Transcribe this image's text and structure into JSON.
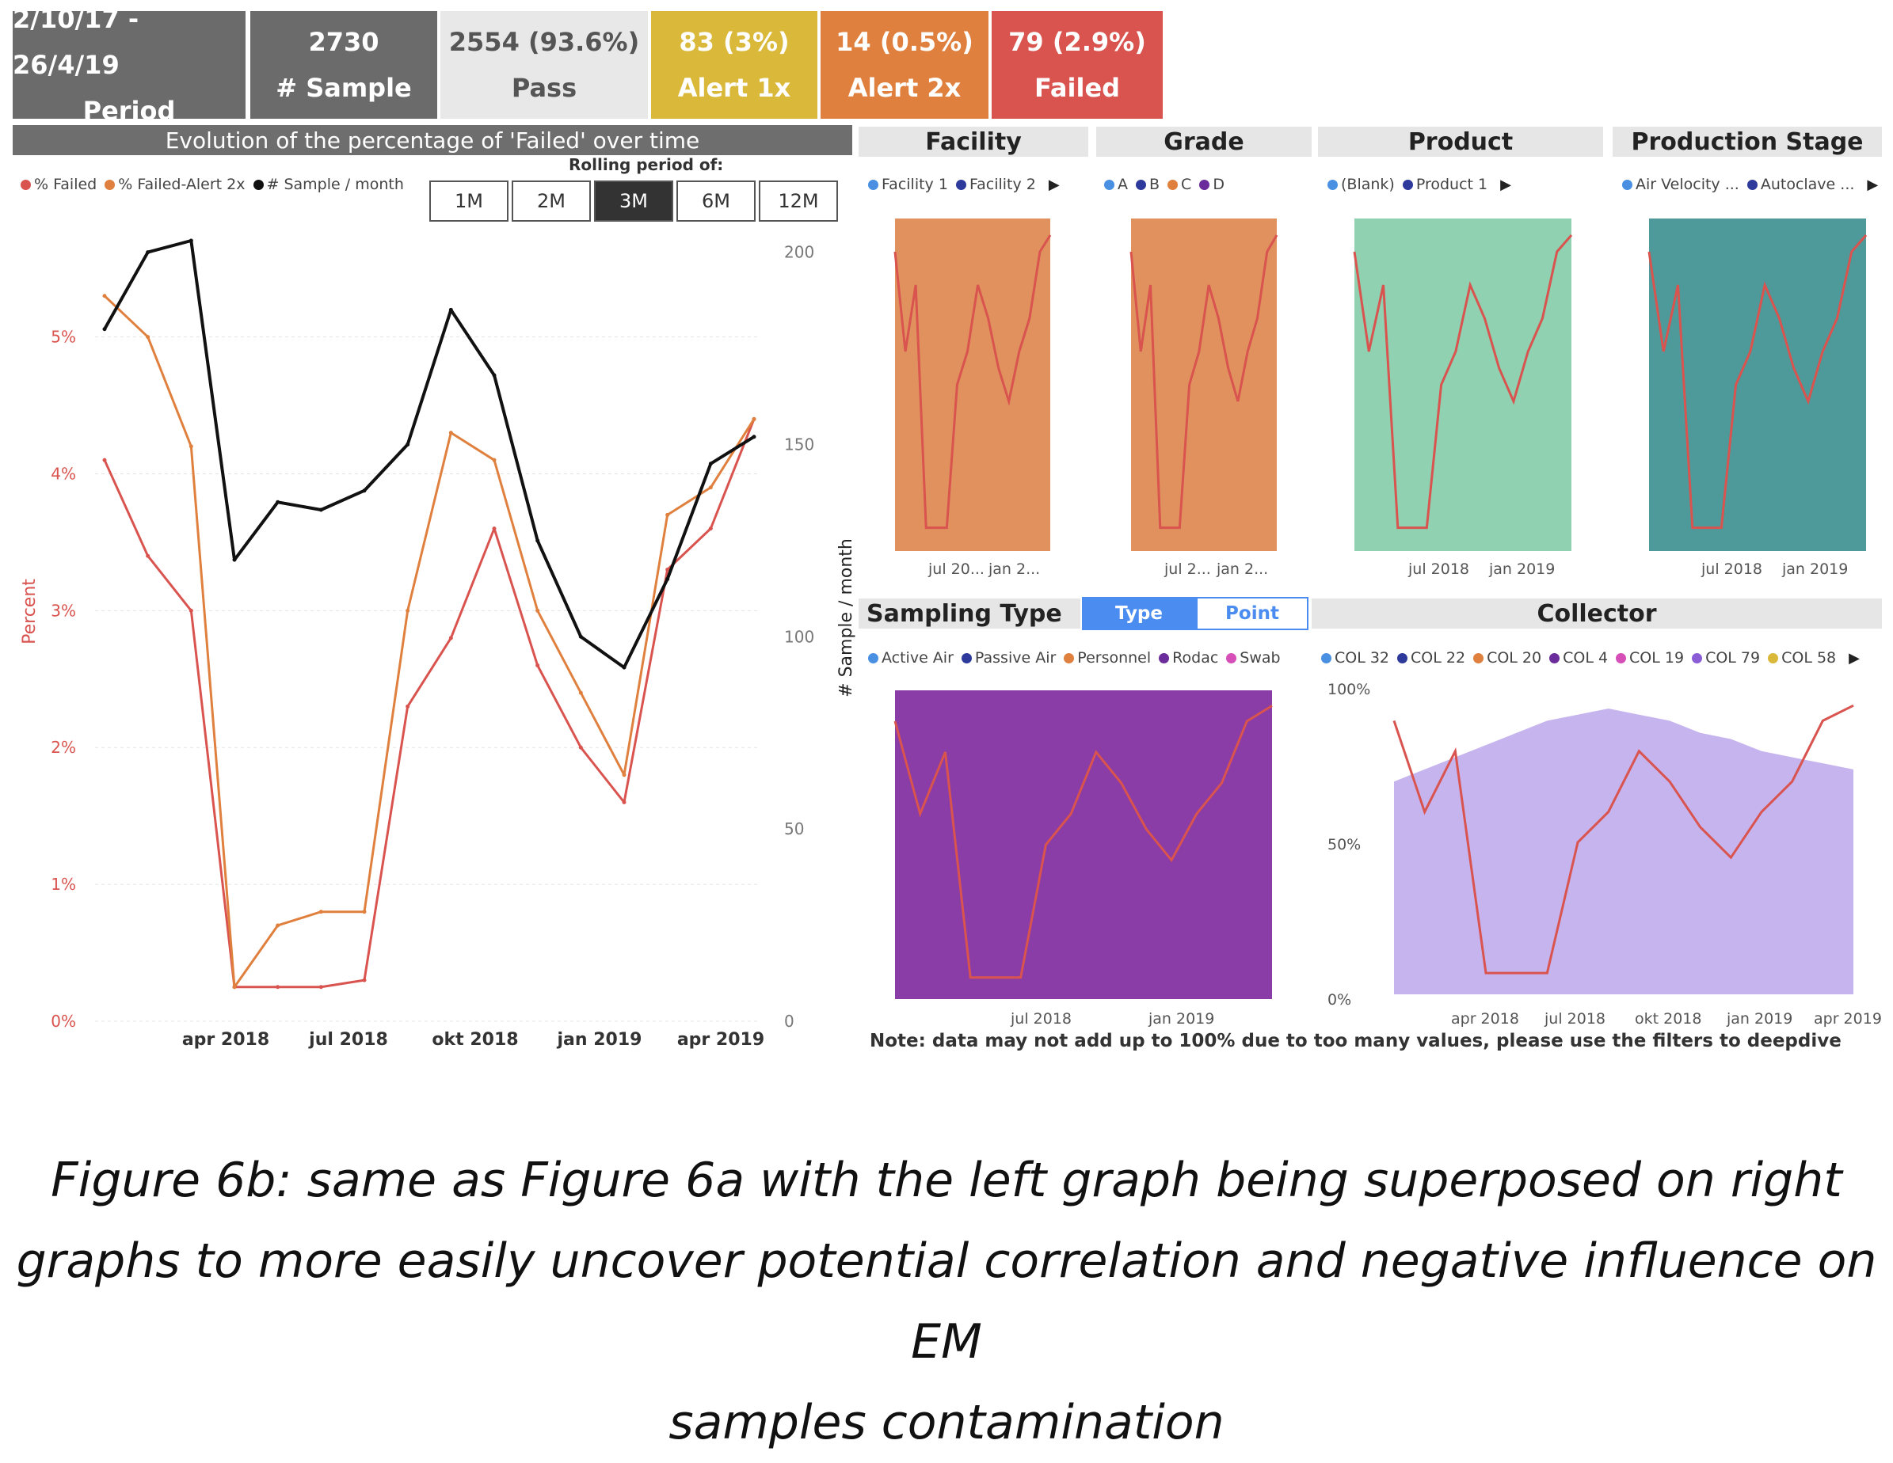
{
  "kpis": [
    {
      "value": "2/10/17 - 26/4/19",
      "label": "Period",
      "bg": "#6b6b6b",
      "fg": "#ffffff"
    },
    {
      "value": "2730",
      "label": "# Sample",
      "bg": "#6b6b6b",
      "fg": "#ffffff"
    },
    {
      "value": "2554 (93.6%)",
      "label": "Pass",
      "bg": "#e8e8e8",
      "fg": "#555555"
    },
    {
      "value": "83 (3%)",
      "label": "Alert 1x",
      "bg": "#d9b83a",
      "fg": "#ffffff"
    },
    {
      "value": "14 (0.5%)",
      "label": "Alert 2x",
      "bg": "#e0803e",
      "fg": "#ffffff"
    },
    {
      "value": "79 (2.9%)",
      "label": "Failed",
      "bg": "#d9534f",
      "fg": "#ffffff"
    }
  ],
  "main_chart": {
    "title": "Evolution of the percentage of 'Failed' over time",
    "rolling_label": "Rolling period of:",
    "rolling_options": [
      "1M",
      "2M",
      "3M",
      "6M",
      "12M"
    ],
    "rolling_selected": "3M",
    "legend": [
      {
        "label": "% Failed",
        "color": "#d9534f"
      },
      {
        "label": "% Failed-Alert 2x",
        "color": "#e0803e"
      },
      {
        "label": "# Sample / month",
        "color": "#111111"
      }
    ],
    "ylabel_left": "Percent",
    "ylabel_right": "# Sample / month",
    "y_left_ticks": [
      "0%",
      "1%",
      "2%",
      "3%",
      "4%",
      "5%"
    ],
    "y_right_ticks": [
      "0",
      "50",
      "100",
      "150",
      "200"
    ],
    "x_ticks": [
      "apr 2018",
      "jul 2018",
      "okt 2018",
      "jan 2019",
      "apr 2019"
    ]
  },
  "chart_data": {
    "type": "line",
    "title": "Evolution of the percentage of 'Failed' over time",
    "xlabel": "",
    "ylabel": "Percent",
    "y2label": "# Sample / month",
    "ylim": [
      0,
      5.9
    ],
    "y2lim": [
      0,
      210
    ],
    "x": [
      "2018-01",
      "2018-02",
      "2018-03",
      "2018-04",
      "2018-05",
      "2018-06",
      "2018-07",
      "2018-08",
      "2018-09",
      "2018-10",
      "2018-11",
      "2018-12",
      "2019-01",
      "2019-02",
      "2019-03",
      "2019-04"
    ],
    "series": [
      {
        "name": "% Failed",
        "axis": "left",
        "values": [
          4.1,
          3.4,
          3.0,
          0.25,
          0.25,
          0.25,
          0.3,
          2.3,
          2.8,
          3.6,
          2.6,
          2.0,
          1.6,
          3.3,
          3.6,
          4.4
        ]
      },
      {
        "name": "% Failed-Alert 2x",
        "axis": "left",
        "values": [
          5.3,
          5.0,
          4.2,
          0.25,
          0.7,
          0.8,
          0.8,
          3.0,
          4.3,
          4.1,
          3.0,
          2.4,
          1.8,
          3.7,
          3.9,
          4.4
        ]
      },
      {
        "name": "# Sample / month",
        "axis": "right",
        "values": [
          180,
          200,
          203,
          120,
          135,
          133,
          138,
          150,
          185,
          168,
          125,
          100,
          92,
          115,
          145,
          152
        ]
      }
    ]
  },
  "facility": {
    "title": "Facility",
    "legend": [
      {
        "label": "Facility 1",
        "color": "#4a90e2"
      },
      {
        "label": "Facility 2",
        "color": "#2d3a9b"
      }
    ],
    "xticks": [
      "jul 20...",
      "jan 2..."
    ]
  },
  "grade": {
    "title": "Grade",
    "legend": [
      {
        "label": "A",
        "color": "#4a90e2"
      },
      {
        "label": "B",
        "color": "#2d3a9b"
      },
      {
        "label": "C",
        "color": "#e0803e"
      },
      {
        "label": "D",
        "color": "#6a2d9b"
      }
    ],
    "xticks": [
      "jul 2...",
      "jan 2..."
    ]
  },
  "product": {
    "title": "Product",
    "legend": [
      {
        "label": "(Blank)",
        "color": "#4a90e2"
      },
      {
        "label": "Product 1",
        "color": "#2d3a9b"
      }
    ],
    "xticks": [
      "jul 2018",
      "jan 2019"
    ]
  },
  "stage": {
    "title": "Production Stage",
    "legend": [
      {
        "label": "Air Velocity ...",
        "color": "#4a90e2"
      },
      {
        "label": "Autoclave ...",
        "color": "#2d3a9b"
      }
    ],
    "xticks": [
      "jul 2018",
      "jan 2019"
    ]
  },
  "sampling": {
    "title": "Sampling Type",
    "toggle_type": "Type",
    "toggle_point": "Point",
    "legend": [
      {
        "label": "Active Air",
        "color": "#4a90e2"
      },
      {
        "label": "Passive Air",
        "color": "#2d3a9b"
      },
      {
        "label": "Personnel",
        "color": "#e0803e"
      },
      {
        "label": "Rodac",
        "color": "#6a2d9b"
      },
      {
        "label": "Swab",
        "color": "#d64fb8"
      }
    ],
    "xticks": [
      "jul 2018",
      "jan 2019"
    ]
  },
  "collector": {
    "title": "Collector",
    "legend": [
      {
        "label": "COL 32",
        "color": "#4a90e2"
      },
      {
        "label": "COL 22",
        "color": "#2d3a9b"
      },
      {
        "label": "COL 20",
        "color": "#e0803e"
      },
      {
        "label": "COL 4",
        "color": "#6a2d9b"
      },
      {
        "label": "COL 19",
        "color": "#d64fb8"
      },
      {
        "label": "COL 79",
        "color": "#8a5cd6"
      },
      {
        "label": "COL 58",
        "color": "#d9b83a"
      }
    ],
    "yticks": [
      "100%",
      "50%",
      "0%"
    ],
    "xticks": [
      "apr 2018",
      "jul 2018",
      "okt 2018",
      "jan 2019",
      "apr 2019"
    ]
  },
  "note": "Note: data may not add up to 100% due to too many values, please use the filters to deepdive",
  "caption": [
    "Figure 6b: same as Figure 6a with the left graph being superposed on right",
    "graphs to more easily uncover potential correlation and negative influence on EM",
    "samples contamination"
  ]
}
